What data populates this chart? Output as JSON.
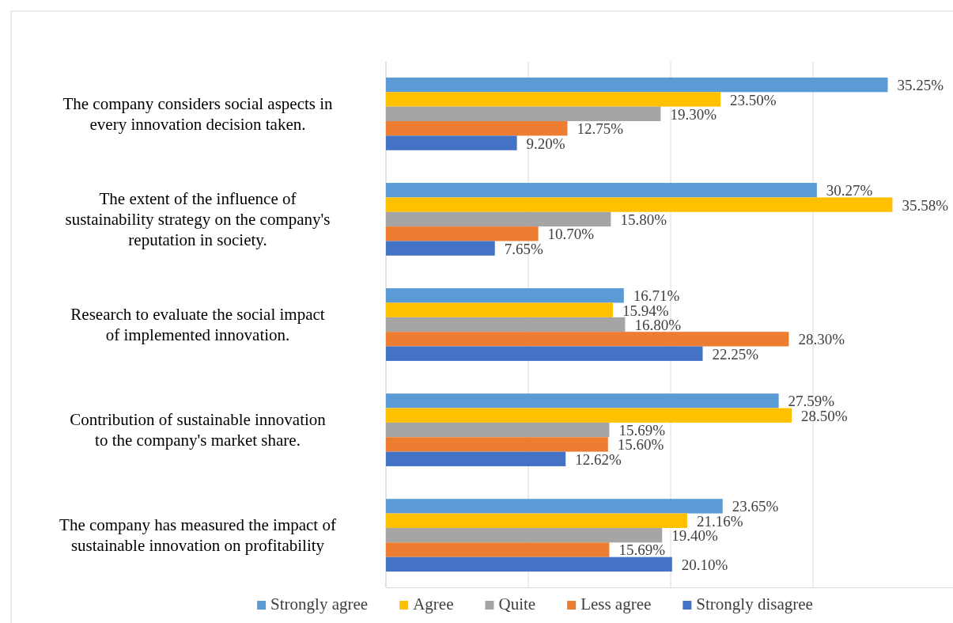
{
  "chart_data": {
    "type": "bar",
    "orientation": "horizontal",
    "categories": [
      "The company considers social aspects in every innovation decision taken.",
      "The extent of the influence of sustainability strategy on the company's reputation in society.",
      "Research to evaluate the social impact of implemented innovation.",
      "Contribution of sustainable innovation to the company's market share.",
      "The company has measured the impact of sustainable innovation on profitability"
    ],
    "series": [
      {
        "name": "Strongly agree",
        "color": "#5b9bd5",
        "values": [
          35.25,
          30.27,
          16.71,
          27.59,
          23.65
        ],
        "value_labels": [
          "35.25%",
          "30.27%",
          "16.71%",
          "27.59%",
          "23.65%"
        ]
      },
      {
        "name": "Agree",
        "color": "#ffc000",
        "values": [
          23.5,
          35.58,
          15.94,
          28.5,
          21.16
        ],
        "value_labels": [
          "23.50%",
          "35.58%",
          "15.94%",
          "28.50%",
          "21.16%"
        ]
      },
      {
        "name": "Quite",
        "color": "#a5a5a5",
        "values": [
          19.3,
          15.8,
          16.8,
          15.69,
          19.4
        ],
        "value_labels": [
          "19.30%",
          "15.80%",
          "16.80%",
          "15.69%",
          "19.40%"
        ]
      },
      {
        "name": "Less agree",
        "color": "#ed7d31",
        "values": [
          12.75,
          10.7,
          28.3,
          15.6,
          15.69
        ],
        "value_labels": [
          "12.75%",
          "10.70%",
          "28.30%",
          "15.60%",
          "15.69%"
        ]
      },
      {
        "name": "Strongly disagree",
        "color": "#4472c4",
        "values": [
          9.2,
          7.65,
          22.25,
          12.62,
          20.1
        ],
        "value_labels": [
          "9.20%",
          "7.65%",
          "22.25%",
          "12.62%",
          "20.10%"
        ]
      }
    ],
    "xlim": [
      0,
      40
    ],
    "xticks": [
      {
        "value": 0,
        "label": null
      },
      {
        "value": 10,
        "label": null
      },
      {
        "value": 20,
        "label": null
      },
      {
        "value": 30,
        "label": null
      }
    ],
    "grid": "x",
    "legend": "bottom"
  }
}
